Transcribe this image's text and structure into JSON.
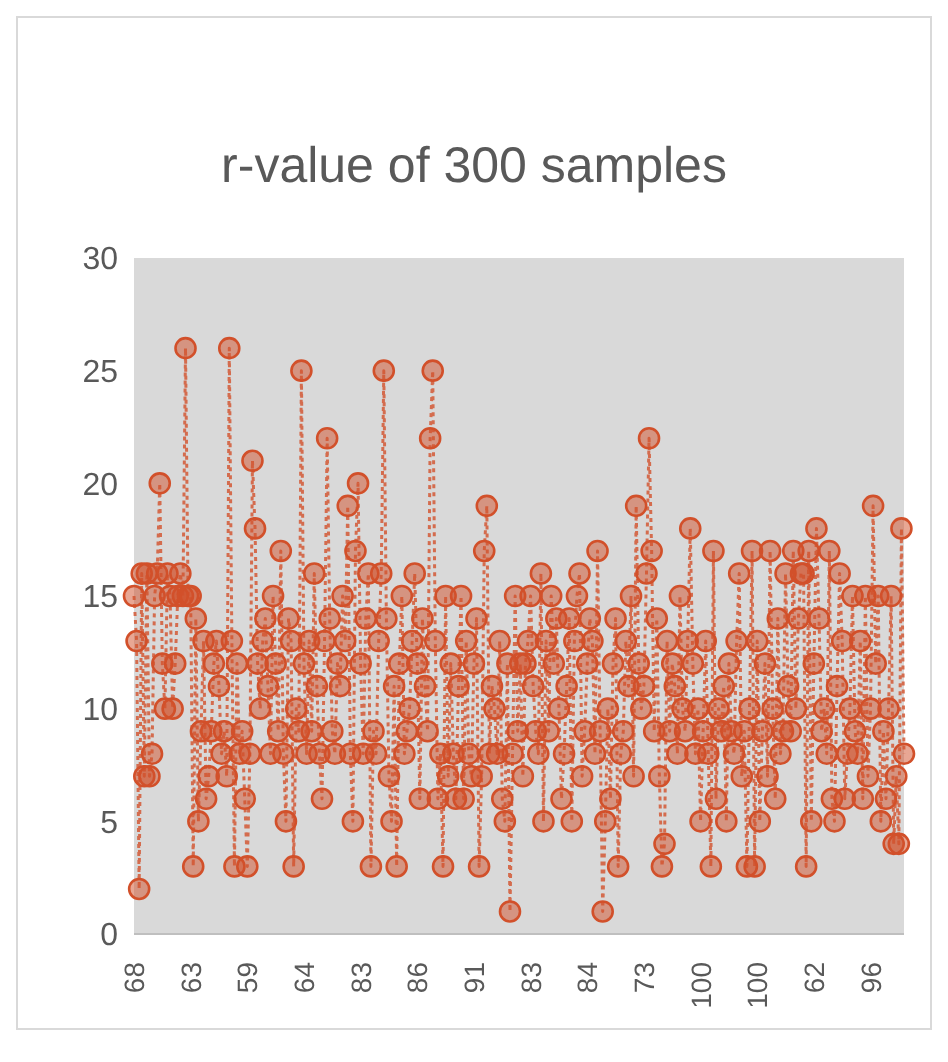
{
  "chart_data": {
    "type": "line",
    "title": "r-value of 300 samples",
    "categories": [
      "68",
      null,
      null,
      null,
      null,
      null,
      null,
      null,
      null,
      null,
      null,
      null,
      null,
      null,
      null,
      null,
      null,
      null,
      null,
      null,
      null,
      null,
      "63",
      null,
      null,
      null,
      null,
      null,
      null,
      null,
      null,
      null,
      null,
      null,
      null,
      null,
      null,
      null,
      null,
      null,
      null,
      null,
      null,
      null,
      "59",
      null,
      null,
      null,
      null,
      null,
      null,
      null,
      null,
      null,
      null,
      null,
      null,
      null,
      null,
      null,
      null,
      null,
      null,
      null,
      null,
      null,
      "64",
      null,
      null,
      null,
      null,
      null,
      null,
      null,
      null,
      null,
      null,
      null,
      null,
      null,
      null,
      null,
      null,
      null,
      null,
      null,
      null,
      null,
      "83",
      null,
      null,
      null,
      null,
      null,
      null,
      null,
      null,
      null,
      null,
      null,
      null,
      null,
      null,
      null,
      null,
      null,
      null,
      null,
      null,
      null,
      "86",
      null,
      null,
      null,
      null,
      null,
      null,
      null,
      null,
      null,
      null,
      null,
      null,
      null,
      null,
      null,
      null,
      null,
      null,
      null,
      null,
      null,
      "91",
      null,
      null,
      null,
      null,
      null,
      null,
      null,
      null,
      null,
      null,
      null,
      null,
      null,
      null,
      null,
      null,
      null,
      null,
      null,
      null,
      null,
      "83",
      null,
      null,
      null,
      null,
      null,
      null,
      null,
      null,
      null,
      null,
      null,
      null,
      null,
      null,
      null,
      null,
      null,
      null,
      null,
      null,
      null,
      "84",
      null,
      null,
      null,
      null,
      null,
      null,
      null,
      null,
      null,
      null,
      null,
      null,
      null,
      null,
      null,
      null,
      null,
      null,
      null,
      null,
      null,
      "73",
      null,
      null,
      null,
      null,
      null,
      null,
      null,
      null,
      null,
      null,
      null,
      null,
      null,
      null,
      null,
      null,
      null,
      null,
      null,
      null,
      null,
      "100",
      null,
      null,
      null,
      null,
      null,
      null,
      null,
      null,
      null,
      null,
      null,
      null,
      null,
      null,
      null,
      null,
      null,
      null,
      null,
      null,
      null,
      "100",
      null,
      null,
      null,
      null,
      null,
      null,
      null,
      null,
      null,
      null,
      null,
      null,
      null,
      null,
      null,
      null,
      null,
      null,
      null,
      null,
      null,
      "62",
      null,
      null,
      null,
      null,
      null,
      null,
      null,
      null,
      null,
      null,
      null,
      null,
      null,
      null,
      null,
      null,
      null,
      null,
      null,
      null,
      null,
      "96",
      null,
      null,
      null,
      null,
      null,
      null,
      null,
      null,
      null,
      null,
      null,
      null,
      null
    ],
    "values": [
      15,
      13,
      2,
      16,
      7,
      16,
      7,
      8,
      15,
      16,
      20,
      12,
      10,
      16,
      15,
      10,
      12,
      15,
      16,
      15,
      26,
      15,
      15,
      3,
      14,
      5,
      9,
      13,
      6,
      7,
      9,
      12,
      13,
      11,
      8,
      9,
      7,
      26,
      13,
      3,
      12,
      8,
      9,
      6,
      3,
      8,
      21,
      18,
      12,
      10,
      13,
      14,
      11,
      8,
      15,
      12,
      9,
      17,
      8,
      5,
      14,
      13,
      3,
      10,
      9,
      25,
      12,
      8,
      13,
      9,
      16,
      11,
      8,
      6,
      13,
      22,
      14,
      9,
      8,
      12,
      11,
      15,
      13,
      19,
      8,
      5,
      17,
      20,
      12,
      8,
      14,
      16,
      3,
      9,
      8,
      13,
      16,
      25,
      14,
      7,
      5,
      11,
      3,
      12,
      15,
      8,
      9,
      10,
      13,
      16,
      12,
      6,
      14,
      11,
      9,
      22,
      25,
      13,
      6,
      8,
      3,
      15,
      7,
      12,
      8,
      6,
      11,
      15,
      6,
      13,
      8,
      7,
      12,
      14,
      3,
      7,
      17,
      19,
      8,
      11,
      10,
      8,
      13,
      6,
      5,
      12,
      1,
      8,
      15,
      9,
      12,
      7,
      12,
      13,
      15,
      11,
      9,
      8,
      16,
      5,
      13,
      9,
      15,
      12,
      14,
      10,
      6,
      8,
      11,
      14,
      5,
      13,
      15,
      16,
      7,
      9,
      12,
      14,
      13,
      8,
      17,
      9,
      1,
      5,
      10,
      6,
      12,
      14,
      3,
      8,
      9,
      13,
      11,
      15,
      7,
      19,
      12,
      10,
      11,
      16,
      22,
      17,
      9,
      14,
      7,
      3,
      4,
      13,
      9,
      12,
      11,
      8,
      15,
      10,
      9,
      13,
      18,
      12,
      8,
      10,
      5,
      9,
      13,
      8,
      3,
      17,
      6,
      10,
      9,
      11,
      5,
      12,
      9,
      8,
      13,
      16,
      7,
      9,
      3,
      10,
      17,
      3,
      13,
      5,
      9,
      12,
      7,
      17,
      10,
      6,
      14,
      8,
      9,
      16,
      11,
      9,
      17,
      10,
      14,
      16,
      16,
      3,
      17,
      5,
      12,
      18,
      14,
      9,
      10,
      8,
      17,
      6,
      5,
      11,
      16,
      13,
      6,
      8,
      10,
      15,
      9,
      8,
      13,
      6,
      15,
      7,
      10,
      19,
      12,
      15,
      5,
      9,
      6,
      10,
      15,
      4,
      7,
      4,
      18,
      8
    ],
    "color": "#d2502a",
    "marker": "circle",
    "line_style": "dotted",
    "ylim": [
      0,
      30
    ],
    "yticks": [
      0,
      5,
      10,
      15,
      20,
      25,
      30
    ],
    "grid": false
  }
}
